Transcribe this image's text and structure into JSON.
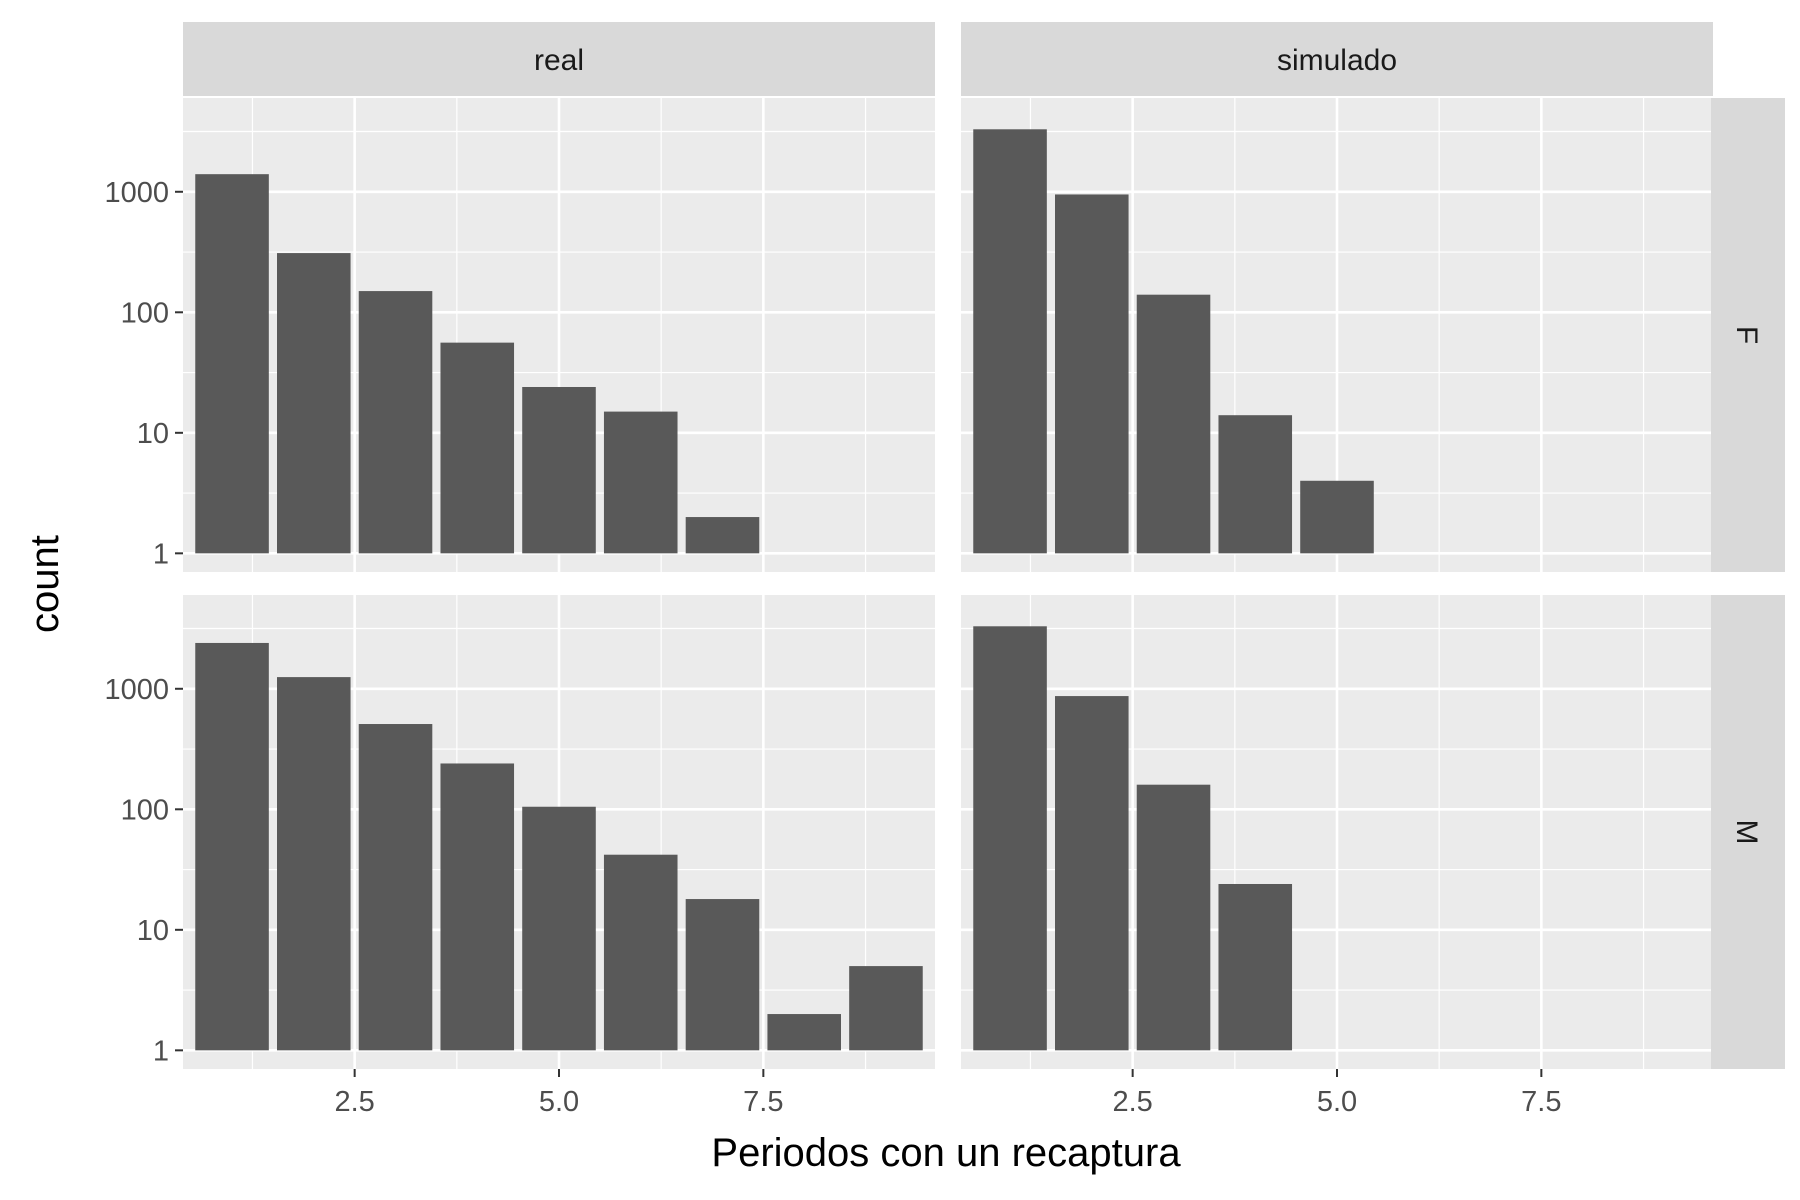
{
  "chart_data": {
    "type": "bar",
    "xlabel": "Periodos con un recaptura",
    "ylabel": "count",
    "y_scale": "log10",
    "xlim": [
      0.4,
      9.6
    ],
    "ylim": [
      0.7,
      6000
    ],
    "x_ticks": [
      2.5,
      5.0,
      7.5
    ],
    "x_tick_labels": [
      "2.5",
      "5.0",
      "7.5"
    ],
    "y_ticks": [
      1,
      10,
      100,
      1000
    ],
    "y_tick_labels": [
      "1",
      "10",
      "100",
      "1000"
    ],
    "grid": true,
    "colors": {
      "bar": "#595959",
      "panel_bg": "#ebebeb",
      "strip_bg": "#d9d9d9",
      "grid": "#ffffff"
    },
    "facet_cols": [
      "real",
      "simulado"
    ],
    "facet_rows": [
      "F",
      "M"
    ],
    "panels": [
      {
        "col": "real",
        "row": "F",
        "x": [
          1,
          2,
          3,
          4,
          5,
          6,
          7
        ],
        "values": [
          1400,
          310,
          150,
          56,
          24,
          15,
          2
        ]
      },
      {
        "col": "simulado",
        "row": "F",
        "x": [
          1,
          2,
          3,
          4,
          5
        ],
        "values": [
          3300,
          950,
          140,
          14,
          4
        ]
      },
      {
        "col": "real",
        "row": "M",
        "x": [
          1,
          2,
          3,
          4,
          5,
          6,
          7,
          8,
          9
        ],
        "values": [
          2400,
          1250,
          510,
          240,
          105,
          42,
          18,
          2,
          5
        ]
      },
      {
        "col": "simulado",
        "row": "M",
        "x": [
          1,
          2,
          3,
          4
        ],
        "values": [
          3300,
          870,
          160,
          24
        ]
      }
    ]
  }
}
